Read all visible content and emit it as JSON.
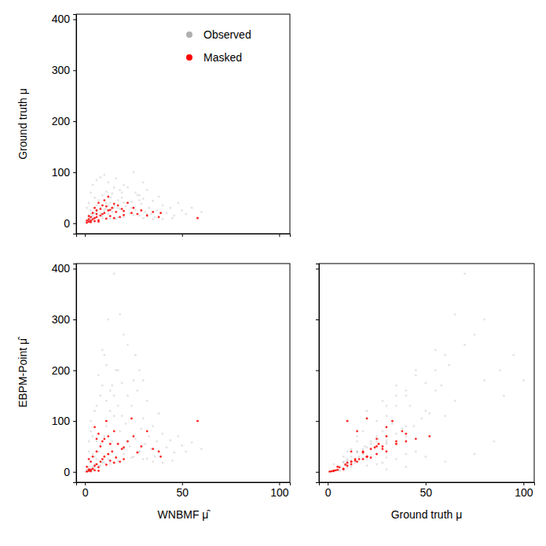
{
  "chart_data": [
    {
      "type": "scatter",
      "ylabel": "Ground truth μ",
      "xlim": [
        -4.5,
        105.5
      ],
      "ylim": [
        -20.5,
        410
      ],
      "xticks": [
        0,
        50,
        100
      ],
      "yticks": [
        0,
        100,
        200,
        300,
        400
      ],
      "tick_labels": "y",
      "legend": "upper right",
      "series": [
        {
          "name": "Observed",
          "color": "#b0b0b0",
          "marker": "o",
          "x": [
            1,
            2,
            3,
            4,
            5,
            6,
            7,
            8,
            9,
            10,
            11,
            12,
            13,
            14,
            15,
            16,
            17,
            18,
            19,
            20,
            21,
            22,
            23,
            24,
            25,
            26,
            27,
            28,
            29,
            30,
            31,
            32,
            33,
            34,
            35,
            37,
            38,
            40,
            42,
            44,
            46,
            48,
            50,
            52,
            55,
            60,
            3,
            4,
            6,
            8,
            2,
            1,
            5,
            10,
            12,
            15,
            18,
            20,
            9,
            7,
            11,
            14,
            16,
            6,
            3,
            2,
            1,
            0.5,
            2,
            4,
            5,
            7,
            9,
            13,
            17,
            25,
            30,
            35,
            45,
            8,
            10,
            12,
            6,
            20,
            24,
            28,
            32,
            36,
            40,
            4,
            3,
            5,
            2,
            9,
            11,
            13,
            17,
            19,
            22,
            26,
            30,
            28,
            15
          ],
          "values": [
            2,
            5,
            8,
            12,
            3,
            20,
            15,
            30,
            10,
            25,
            40,
            18,
            50,
            22,
            35,
            8,
            45,
            28,
            60,
            12,
            33,
            70,
            19,
            42,
            100,
            26,
            55,
            15,
            38,
            48,
            22,
            65,
            30,
            18,
            44,
            25,
            52,
            35,
            20,
            30,
            15,
            40,
            25,
            18,
            30,
            22,
            60,
            75,
            85,
            90,
            40,
            30,
            50,
            95,
            80,
            70,
            65,
            75,
            55,
            45,
            62,
            58,
            88,
            35,
            18,
            10,
            6,
            1,
            3,
            6,
            10,
            5,
            14,
            9,
            12,
            16,
            10,
            8,
            10,
            20,
            28,
            35,
            25,
            40,
            30,
            45,
            18,
            12,
            8,
            15,
            25,
            20,
            15,
            35,
            28,
            40,
            30,
            50,
            40,
            60,
            80,
            55,
            30
          ]
        },
        {
          "name": "Masked",
          "color": "#ff0000",
          "marker": "o",
          "x": [
            1,
            2,
            3,
            4,
            5,
            6,
            7,
            8,
            9,
            10,
            11,
            12,
            13,
            14,
            15,
            16,
            17,
            18,
            19,
            20,
            22,
            24,
            25,
            27,
            29,
            32,
            35,
            38,
            39,
            58,
            3,
            4,
            5,
            6,
            7,
            2,
            8,
            9,
            10,
            12,
            11,
            13,
            15,
            3,
            5,
            7,
            1,
            2,
            6,
            20
          ],
          "values": [
            1,
            3,
            5,
            8,
            10,
            12,
            6,
            15,
            18,
            20,
            9,
            25,
            14,
            30,
            10,
            22,
            35,
            12,
            28,
            16,
            40,
            20,
            30,
            18,
            25,
            15,
            22,
            12,
            20,
            10,
            12,
            20,
            30,
            25,
            40,
            8,
            28,
            35,
            45,
            52,
            33,
            26,
            38,
            2,
            4,
            3,
            5,
            14,
            18,
            24
          ]
        }
      ]
    },
    {
      "type": "scatter",
      "xlabel": "WNBMF μ̂",
      "ylabel": "EBPM-Point μ̂",
      "xlim": [
        -4.5,
        105.5
      ],
      "ylim": [
        -20.5,
        410
      ],
      "xticks": [
        0,
        50,
        100
      ],
      "yticks": [
        0,
        100,
        200,
        300,
        400
      ],
      "series": [
        {
          "name": "Observed",
          "color": "#b0b0b0",
          "marker": "o",
          "x": [
            1,
            2,
            3,
            4,
            5,
            6,
            7,
            8,
            9,
            10,
            11,
            12,
            13,
            14,
            15,
            16,
            17,
            18,
            19,
            20,
            21,
            22,
            23,
            24,
            25,
            26,
            27,
            28,
            29,
            30,
            31,
            32,
            33,
            34,
            35,
            37,
            38,
            40,
            42,
            44,
            46,
            48,
            50,
            52,
            55,
            60,
            3,
            4,
            6,
            8,
            2,
            1,
            5,
            10,
            12,
            15,
            18,
            20,
            9,
            7,
            11,
            14,
            16,
            6,
            3,
            2,
            1,
            0.5,
            2,
            4,
            5,
            7,
            9,
            13,
            17,
            25,
            30,
            35,
            45,
            8,
            10,
            12,
            6,
            20,
            24,
            28,
            32,
            36,
            40,
            4,
            3,
            5,
            2,
            9,
            11,
            13,
            17,
            19,
            22,
            26,
            30,
            28,
            15
          ],
          "values": [
            1,
            3,
            6,
            10,
            15,
            25,
            40,
            55,
            20,
            70,
            90,
            35,
            120,
            60,
            150,
            30,
            200,
            80,
            110,
            45,
            95,
            250,
            50,
            130,
            180,
            65,
            160,
            40,
            85,
            105,
            55,
            140,
            70,
            45,
            90,
            60,
            115,
            75,
            48,
            62,
            38,
            70,
            52,
            40,
            58,
            45,
            20,
            35,
            60,
            150,
            10,
            5,
            30,
            230,
            300,
            390,
            310,
            270,
            240,
            190,
            210,
            170,
            200,
            130,
            80,
            40,
            2,
            0.5,
            1,
            4,
            8,
            12,
            18,
            16,
            22,
            30,
            25,
            20,
            22,
            12,
            18,
            25,
            15,
            35,
            28,
            40,
            26,
            30,
            18,
            70,
            100,
            120,
            60,
            170,
            140,
            160,
            130,
            175,
            150,
            230,
            180,
            200,
            110
          ]
        },
        {
          "name": "Masked",
          "color": "#ff0000",
          "marker": "o",
          "x": [
            1,
            2,
            3,
            4,
            5,
            6,
            7,
            8,
            9,
            10,
            11,
            12,
            13,
            14,
            15,
            16,
            17,
            18,
            19,
            20,
            22,
            24,
            25,
            27,
            29,
            32,
            35,
            38,
            39,
            58,
            3,
            4,
            5,
            6,
            7,
            2,
            8,
            9,
            10,
            12,
            11,
            13,
            15,
            3,
            5,
            7,
            1,
            2,
            6,
            20
          ],
          "values": [
            0.5,
            2,
            4,
            6,
            12,
            15,
            9,
            20,
            25,
            30,
            14,
            35,
            22,
            40,
            18,
            28,
            55,
            20,
            45,
            25,
            60,
            105,
            70,
            38,
            50,
            80,
            45,
            40,
            30,
            100,
            20,
            30,
            88,
            65,
            75,
            5,
            50,
            60,
            65,
            70,
            100,
            55,
            80,
            1,
            3,
            2,
            10,
            25,
            40,
            48
          ]
        }
      ]
    },
    {
      "type": "scatter",
      "xlabel": "Ground truth μ",
      "xlim": [
        -4.5,
        105.5
      ],
      "ylim": [
        -20.5,
        410
      ],
      "xticks": [
        0,
        50,
        100
      ],
      "yticks": [
        0,
        100,
        200,
        300,
        400
      ],
      "tick_labels": "x",
      "series": [
        {
          "name": "Observed",
          "color": "#b0b0b0",
          "marker": "o",
          "x": [
            2,
            5,
            8,
            12,
            3,
            20,
            15,
            30,
            10,
            25,
            40,
            18,
            50,
            22,
            35,
            8,
            45,
            28,
            60,
            12,
            33,
            70,
            19,
            42,
            100,
            26,
            55,
            15,
            38,
            48,
            22,
            65,
            30,
            18,
            44,
            25,
            52,
            35,
            20,
            30,
            15,
            40,
            25,
            18,
            30,
            22,
            60,
            75,
            85,
            90,
            40,
            30,
            50,
            95,
            80,
            70,
            65,
            75,
            55,
            45,
            62,
            58,
            88,
            35,
            18,
            10,
            6,
            1,
            3,
            6,
            10,
            5,
            14,
            9,
            12,
            16,
            10,
            8,
            10,
            20,
            28,
            35,
            25,
            40,
            30,
            45,
            18,
            12,
            8,
            15,
            25,
            20,
            15,
            35,
            28,
            40,
            30,
            50,
            40,
            60,
            80,
            55,
            30
          ],
          "values": [
            1,
            3,
            6,
            10,
            15,
            25,
            40,
            55,
            20,
            70,
            90,
            35,
            120,
            60,
            150,
            30,
            200,
            80,
            110,
            45,
            95,
            250,
            50,
            130,
            180,
            65,
            160,
            40,
            85,
            105,
            55,
            140,
            70,
            45,
            90,
            60,
            115,
            75,
            48,
            62,
            38,
            70,
            52,
            40,
            58,
            45,
            20,
            35,
            60,
            150,
            10,
            5,
            30,
            230,
            300,
            390,
            310,
            270,
            240,
            190,
            210,
            170,
            200,
            130,
            80,
            40,
            2,
            0.5,
            1,
            4,
            8,
            12,
            18,
            16,
            22,
            30,
            25,
            20,
            22,
            12,
            18,
            25,
            15,
            35,
            28,
            40,
            26,
            30,
            18,
            70,
            100,
            120,
            60,
            170,
            140,
            160,
            130,
            175,
            150,
            230,
            180,
            200,
            110
          ]
        },
        {
          "name": "Masked",
          "color": "#ff0000",
          "marker": "o",
          "x": [
            1,
            3,
            5,
            8,
            10,
            12,
            6,
            15,
            18,
            20,
            9,
            25,
            14,
            30,
            10,
            22,
            35,
            12,
            28,
            16,
            40,
            20,
            30,
            18,
            25,
            15,
            22,
            12,
            20,
            10,
            12,
            20,
            30,
            25,
            40,
            8,
            28,
            35,
            45,
            52,
            33,
            26,
            38,
            2,
            4,
            3,
            5,
            14,
            18,
            24
          ],
          "values": [
            0.5,
            2,
            4,
            6,
            12,
            15,
            9,
            20,
            25,
            30,
            14,
            35,
            22,
            40,
            18,
            28,
            55,
            20,
            45,
            25,
            60,
            105,
            70,
            38,
            50,
            80,
            45,
            40,
            30,
            100,
            20,
            30,
            88,
            65,
            75,
            5,
            50,
            60,
            65,
            70,
            100,
            55,
            80,
            1,
            3,
            2,
            10,
            25,
            40,
            48
          ]
        }
      ]
    }
  ]
}
